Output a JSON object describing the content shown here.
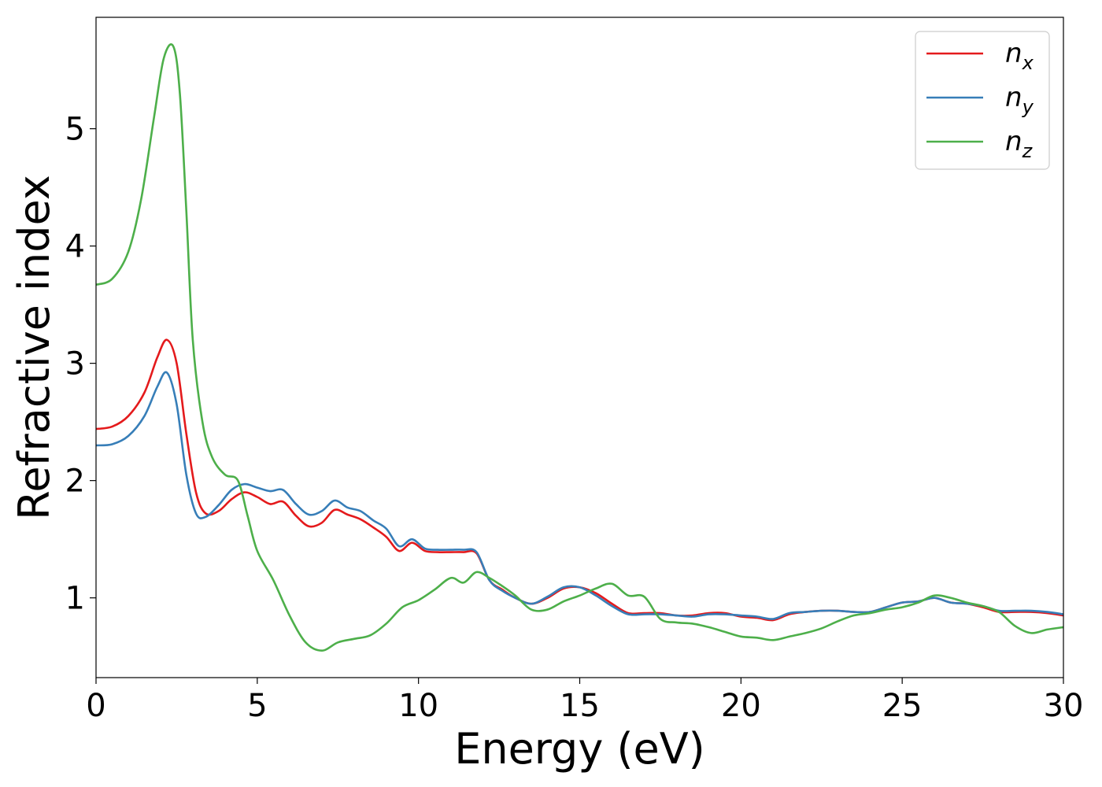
{
  "chart_data": {
    "type": "line",
    "title": "",
    "xlabel": "Energy (eV)",
    "ylabel": "Refractive index",
    "xlim": [
      0,
      30
    ],
    "ylim": [
      0.32,
      5.95
    ],
    "xticks": [
      0,
      5,
      10,
      15,
      20,
      25,
      30
    ],
    "yticks": [
      1,
      2,
      3,
      4,
      5
    ],
    "grid": false,
    "legend_position": "top-right",
    "series": [
      {
        "name": "n_x",
        "label_base": "n",
        "label_sub": "x",
        "color": "#e41a1c",
        "x": [
          0,
          0.5,
          1.0,
          1.5,
          1.9,
          2.2,
          2.5,
          2.8,
          3.1,
          3.4,
          3.8,
          4.2,
          4.6,
          5.0,
          5.4,
          5.8,
          6.2,
          6.6,
          7.0,
          7.4,
          7.8,
          8.2,
          8.6,
          9.0,
          9.4,
          9.8,
          10.2,
          10.6,
          11.0,
          11.4,
          11.8,
          12.2,
          12.6,
          13.0,
          13.5,
          14.0,
          14.5,
          15.0,
          15.5,
          16.0,
          16.5,
          17.0,
          17.5,
          18.0,
          18.5,
          19.0,
          19.5,
          20.0,
          20.5,
          21.0,
          21.5,
          22.0,
          22.5,
          23.0,
          23.5,
          24.0,
          24.5,
          25.0,
          25.5,
          26.0,
          26.5,
          27.0,
          27.5,
          28.0,
          28.5,
          29.0,
          29.5,
          30.0
        ],
        "y": [
          2.44,
          2.46,
          2.55,
          2.75,
          3.05,
          3.2,
          3.0,
          2.4,
          1.9,
          1.72,
          1.74,
          1.84,
          1.9,
          1.86,
          1.8,
          1.82,
          1.7,
          1.61,
          1.64,
          1.75,
          1.71,
          1.67,
          1.6,
          1.52,
          1.4,
          1.47,
          1.4,
          1.39,
          1.39,
          1.39,
          1.38,
          1.15,
          1.07,
          1.0,
          0.95,
          1.0,
          1.08,
          1.09,
          1.04,
          0.95,
          0.87,
          0.87,
          0.87,
          0.85,
          0.85,
          0.87,
          0.87,
          0.84,
          0.83,
          0.81,
          0.86,
          0.88,
          0.89,
          0.89,
          0.88,
          0.88,
          0.92,
          0.96,
          0.97,
          1.0,
          0.96,
          0.95,
          0.92,
          0.88,
          0.88,
          0.88,
          0.87,
          0.85
        ]
      },
      {
        "name": "n_y",
        "label_base": "n",
        "label_sub": "y",
        "color": "#377eb8",
        "x": [
          0,
          0.5,
          1.0,
          1.5,
          1.9,
          2.2,
          2.5,
          2.8,
          3.1,
          3.4,
          3.8,
          4.2,
          4.6,
          5.0,
          5.4,
          5.8,
          6.2,
          6.6,
          7.0,
          7.4,
          7.8,
          8.2,
          8.6,
          9.0,
          9.4,
          9.8,
          10.2,
          10.6,
          11.0,
          11.4,
          11.8,
          12.2,
          12.6,
          13.0,
          13.5,
          14.0,
          14.5,
          15.0,
          15.5,
          16.0,
          16.5,
          17.0,
          17.5,
          18.0,
          18.5,
          19.0,
          19.5,
          20.0,
          20.5,
          21.0,
          21.5,
          22.0,
          22.5,
          23.0,
          23.5,
          24.0,
          24.5,
          25.0,
          25.5,
          26.0,
          26.5,
          27.0,
          27.5,
          28.0,
          28.5,
          29.0,
          29.5,
          30.0
        ],
        "y": [
          2.3,
          2.31,
          2.38,
          2.55,
          2.8,
          2.92,
          2.65,
          2.05,
          1.72,
          1.69,
          1.79,
          1.92,
          1.97,
          1.94,
          1.91,
          1.92,
          1.8,
          1.71,
          1.74,
          1.83,
          1.77,
          1.74,
          1.66,
          1.59,
          1.44,
          1.5,
          1.42,
          1.41,
          1.41,
          1.41,
          1.39,
          1.15,
          1.06,
          1.0,
          0.95,
          1.01,
          1.09,
          1.09,
          1.02,
          0.93,
          0.86,
          0.86,
          0.86,
          0.85,
          0.84,
          0.86,
          0.86,
          0.85,
          0.84,
          0.82,
          0.87,
          0.88,
          0.89,
          0.89,
          0.88,
          0.88,
          0.92,
          0.96,
          0.97,
          1.0,
          0.96,
          0.95,
          0.93,
          0.89,
          0.89,
          0.89,
          0.88,
          0.86
        ]
      },
      {
        "name": "n_z",
        "label_base": "n",
        "label_sub": "z",
        "color": "#4daf4a",
        "x": [
          0,
          0.5,
          1.0,
          1.4,
          1.8,
          2.1,
          2.4,
          2.6,
          2.8,
          3.0,
          3.3,
          3.6,
          4.0,
          4.4,
          4.7,
          5.0,
          5.5,
          6.0,
          6.5,
          7.0,
          7.5,
          8.0,
          8.5,
          9.0,
          9.5,
          10.0,
          10.5,
          11.0,
          11.4,
          11.8,
          12.2,
          12.6,
          13.0,
          13.5,
          14.0,
          14.5,
          15.0,
          15.5,
          16.0,
          16.5,
          17.0,
          17.5,
          18.0,
          18.5,
          19.0,
          19.5,
          20.0,
          20.5,
          21.0,
          21.5,
          22.0,
          22.5,
          23.0,
          23.5,
          24.0,
          24.5,
          25.0,
          25.5,
          26.0,
          26.5,
          27.0,
          27.5,
          28.0,
          28.5,
          29.0,
          29.5,
          30.0
        ],
        "y": [
          3.67,
          3.72,
          3.95,
          4.4,
          5.1,
          5.6,
          5.7,
          5.3,
          4.3,
          3.2,
          2.5,
          2.2,
          2.05,
          2.0,
          1.7,
          1.4,
          1.15,
          0.85,
          0.62,
          0.55,
          0.62,
          0.65,
          0.68,
          0.78,
          0.92,
          0.98,
          1.07,
          1.17,
          1.13,
          1.22,
          1.17,
          1.1,
          1.02,
          0.9,
          0.9,
          0.97,
          1.02,
          1.08,
          1.12,
          1.02,
          1.01,
          0.82,
          0.79,
          0.78,
          0.75,
          0.71,
          0.67,
          0.66,
          0.64,
          0.67,
          0.7,
          0.74,
          0.8,
          0.85,
          0.87,
          0.9,
          0.92,
          0.96,
          1.02,
          1.0,
          0.96,
          0.93,
          0.88,
          0.76,
          0.7,
          0.73,
          0.75
        ]
      }
    ]
  }
}
